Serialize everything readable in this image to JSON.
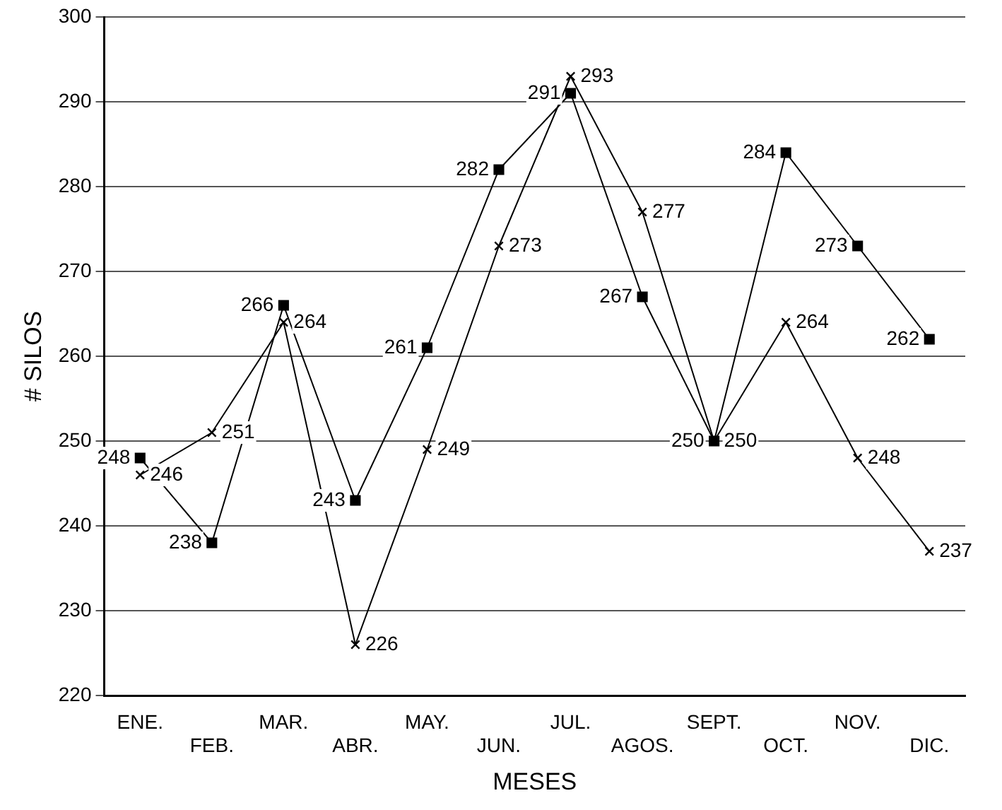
{
  "chart_data": {
    "type": "line",
    "xlabel": "MESES",
    "ylabel": "# SILOS",
    "categories": [
      "ENE.",
      "FEB.",
      "MAR.",
      "ABR.",
      "MAY.",
      "JUN.",
      "JUL.",
      "AGOS.",
      "SEPT.",
      "OCT.",
      "NOV.",
      "DIC."
    ],
    "series": [
      {
        "color": "#000000",
        "marker": "square",
        "values": [
          248,
          238,
          266,
          243,
          261,
          282,
          291,
          267,
          250,
          284,
          273,
          262
        ]
      },
      {
        "color": "#000000",
        "marker": "cross",
        "values": [
          246,
          251,
          264,
          226,
          249,
          273,
          293,
          277,
          250,
          264,
          248,
          237
        ]
      }
    ],
    "ylim": [
      220,
      300
    ],
    "yticks": [
      220,
      230,
      240,
      250,
      260,
      270,
      280,
      290,
      300
    ],
    "grid": "y",
    "data_labels": true
  }
}
